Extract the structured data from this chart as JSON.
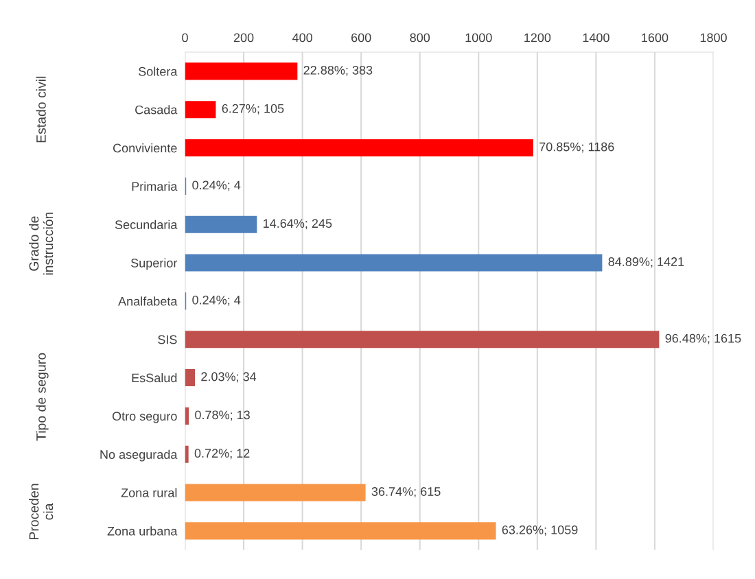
{
  "chart_data": {
    "type": "bar",
    "orientation": "horizontal",
    "categories": [
      "Soltera",
      "Casada",
      "Conviviente",
      "Primaria",
      "Secundaria",
      "Superior",
      "Analfabeta",
      "SIS",
      "EsSalud",
      "Otro seguro",
      "No asegurada",
      "Zona rural",
      "Zona urbana"
    ],
    "series": [
      {
        "color": "#ff0000",
        "values": [
          383,
          105,
          1186,
          null,
          null,
          null,
          null,
          null,
          null,
          null,
          null,
          null,
          null
        ],
        "value_labels": [
          "22.88%; 383",
          "6.27%; 105",
          "70.85%; 1186",
          null,
          null,
          null,
          null,
          null,
          null,
          null,
          null,
          null,
          null
        ]
      },
      {
        "color": "#4f81bd",
        "values": [
          null,
          null,
          null,
          4,
          245,
          1421,
          4,
          null,
          null,
          null,
          null,
          null,
          null
        ],
        "value_labels": [
          null,
          null,
          null,
          "0.24%; 4",
          "14.64%; 245",
          "84.89%; 1421",
          "0.24%; 4",
          null,
          null,
          null,
          null,
          null,
          null
        ]
      },
      {
        "color": "#c0504d",
        "values": [
          null,
          null,
          null,
          null,
          null,
          null,
          null,
          1615,
          34,
          13,
          12,
          null,
          null
        ],
        "value_labels": [
          null,
          null,
          null,
          null,
          null,
          null,
          null,
          "96.48%; 1615",
          "2.03%; 34",
          "0.78%; 13",
          "0.72%; 12",
          null,
          null
        ]
      },
      {
        "color": "#f79646",
        "values": [
          null,
          null,
          null,
          null,
          null,
          null,
          null,
          null,
          null,
          null,
          null,
          615,
          1059
        ],
        "value_labels": [
          null,
          null,
          null,
          null,
          null,
          null,
          null,
          null,
          null,
          null,
          null,
          "36.74%; 615",
          "63.26%; 1059"
        ]
      }
    ],
    "xlim": [
      0,
      1800
    ],
    "xticks": [
      0,
      200,
      400,
      600,
      800,
      1000,
      1200,
      1400,
      1600,
      1800
    ],
    "annotations": [
      "Estado civil",
      "Grado de\ninstrucción",
      "Tipo de seguro",
      "Proceden\ncia"
    ],
    "grid": "x",
    "legend": false
  }
}
